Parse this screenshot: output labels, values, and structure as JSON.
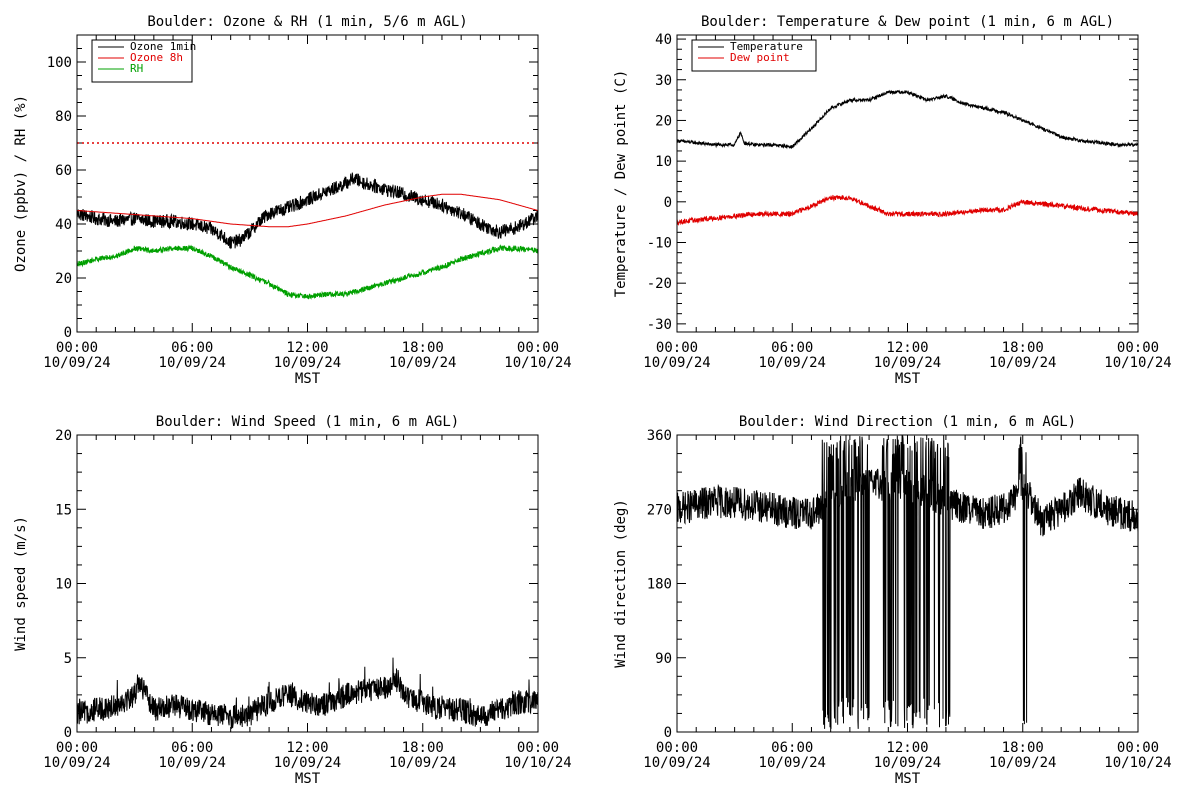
{
  "xaxis": {
    "label": "MST",
    "ticks": [
      {
        "time": "00:00",
        "date": "10/09/24"
      },
      {
        "time": "06:00",
        "date": "10/09/24"
      },
      {
        "time": "12:00",
        "date": "10/09/24"
      },
      {
        "time": "18:00",
        "date": "10/09/24"
      },
      {
        "time": "00:00",
        "date": "10/10/24"
      }
    ]
  },
  "chart_data": [
    {
      "type": "line",
      "title": "Boulder: Ozone & RH (1 min, 5/6 m AGL)",
      "xlabel": "",
      "ylabel": "Ozone (ppbv) / RH (%)",
      "xlim": [
        0,
        24
      ],
      "ylim": [
        0,
        110
      ],
      "yticks": [
        0,
        20,
        40,
        60,
        80,
        100
      ],
      "reference_line": {
        "y": 70,
        "style": "dotted",
        "color": "#e00000"
      },
      "legend_position": "top-left",
      "series": [
        {
          "name": "Ozone 1min",
          "color": "#000000",
          "noise": 2.5,
          "x": [
            0,
            1,
            2,
            3,
            4,
            5,
            6,
            7,
            7.5,
            8,
            8.5,
            9,
            9.5,
            10,
            11,
            12,
            13,
            14,
            14.4,
            15,
            16,
            17,
            18,
            19,
            20,
            21,
            22,
            23,
            24
          ],
          "y": [
            44,
            42,
            41,
            42,
            41,
            41,
            40,
            38,
            36,
            33,
            34,
            37,
            41,
            44,
            46,
            49,
            52,
            55,
            57,
            55,
            53,
            51,
            49,
            47,
            44,
            40,
            37,
            39,
            43
          ]
        },
        {
          "name": "Ozone 8h",
          "color": "#e00000",
          "noise": 0,
          "x": [
            0,
            2,
            4,
            6,
            8,
            10,
            11,
            12,
            14,
            16,
            18,
            19,
            20,
            22,
            24
          ],
          "y": [
            45,
            44,
            43,
            42,
            40,
            39,
            39,
            40,
            43,
            47,
            50,
            51,
            51,
            49,
            45
          ]
        },
        {
          "name": "RH",
          "color": "#00a000",
          "noise": 1,
          "x": [
            0,
            1,
            2,
            3,
            4,
            5,
            6,
            7,
            8,
            9,
            10,
            11,
            12,
            13,
            14,
            15,
            16,
            17,
            18,
            19,
            20,
            21,
            22,
            23,
            24
          ],
          "y": [
            25,
            27,
            28,
            31,
            30,
            31,
            31,
            28,
            24,
            21,
            18,
            14,
            13,
            14,
            14,
            16,
            18,
            20,
            22,
            24,
            27,
            29,
            31,
            31,
            30
          ]
        }
      ]
    },
    {
      "type": "line",
      "title": "Boulder: Temperature & Dew point (1 min, 6 m AGL)",
      "xlabel": "",
      "ylabel": "Temperature / Dew point (C)",
      "xlim": [
        0,
        24
      ],
      "ylim": [
        -32,
        41
      ],
      "yticks": [
        -30,
        -20,
        -10,
        0,
        10,
        20,
        30,
        40
      ],
      "legend_position": "top-left",
      "series": [
        {
          "name": "Temperature",
          "color": "#000000",
          "noise": 0.4,
          "x": [
            0,
            1,
            2,
            3,
            3.3,
            3.5,
            4,
            5,
            6,
            7,
            8,
            9,
            10,
            11,
            12,
            13,
            14,
            15,
            16,
            17,
            18,
            19,
            20,
            21,
            22,
            23,
            24
          ],
          "y": [
            15,
            14.5,
            14,
            14,
            17,
            14.5,
            14,
            14,
            13.5,
            18,
            23,
            25,
            25,
            27,
            27,
            25,
            26,
            24,
            23,
            22,
            20,
            18,
            16,
            15,
            14.5,
            14,
            14
          ]
        },
        {
          "name": "Dew point",
          "color": "#e00000",
          "noise": 0.6,
          "x": [
            0,
            2,
            4,
            6,
            7,
            8,
            9,
            10,
            11,
            12,
            14,
            16,
            17,
            18,
            20,
            22,
            24
          ],
          "y": [
            -5,
            -4,
            -3,
            -3,
            -1,
            1,
            1,
            -1,
            -3,
            -3,
            -3,
            -2,
            -2,
            0,
            -1,
            -2,
            -3
          ]
        }
      ]
    },
    {
      "type": "line",
      "title": "Boulder: Wind Speed (1 min, 6 m AGL)",
      "xlabel": "",
      "ylabel": "Wind speed (m/s)",
      "xlim": [
        0,
        24
      ],
      "ylim": [
        0,
        20
      ],
      "yticks": [
        0,
        5,
        10,
        15,
        20
      ],
      "series": [
        {
          "name": "",
          "color": "#000000",
          "noise": 0.8,
          "x": [
            0,
            1,
            2,
            3,
            3.2,
            4,
            5,
            6,
            7,
            8,
            9,
            10,
            11,
            12,
            13,
            14,
            15,
            16,
            16.7,
            17,
            18,
            19,
            20,
            21,
            22,
            23,
            24
          ],
          "y": [
            1.2,
            1.5,
            1.8,
            2.5,
            3.5,
            1.5,
            1.8,
            1.5,
            1.2,
            1,
            1.2,
            2,
            2.5,
            2,
            1.8,
            2.5,
            2.8,
            3,
            3.5,
            2.5,
            2,
            1.5,
            1.5,
            1,
            1.5,
            2,
            2
          ]
        }
      ]
    },
    {
      "type": "line",
      "title": "Boulder: Wind Direction (1 min, 6 m AGL)",
      "xlabel": "",
      "ylabel": "Wind direction (deg)",
      "xlim": [
        0,
        24
      ],
      "ylim": [
        0,
        360
      ],
      "yticks": [
        0,
        90,
        180,
        270,
        360
      ],
      "series": [
        {
          "name": "",
          "color": "#000000",
          "noise": 20,
          "wrap": [
            [
              7.5,
              10
            ],
            [
              10.7,
              14.2
            ],
            [
              17.8,
              18.2
            ]
          ],
          "x": [
            0,
            2,
            4,
            6,
            7,
            8,
            9,
            10,
            11,
            12,
            13,
            14,
            15,
            16,
            17,
            18,
            19,
            20,
            21,
            22,
            23,
            24
          ],
          "y": [
            270,
            280,
            275,
            265,
            265,
            280,
            300,
            300,
            300,
            300,
            290,
            280,
            270,
            265,
            270,
            300,
            255,
            270,
            290,
            275,
            265,
            260
          ]
        }
      ]
    }
  ]
}
